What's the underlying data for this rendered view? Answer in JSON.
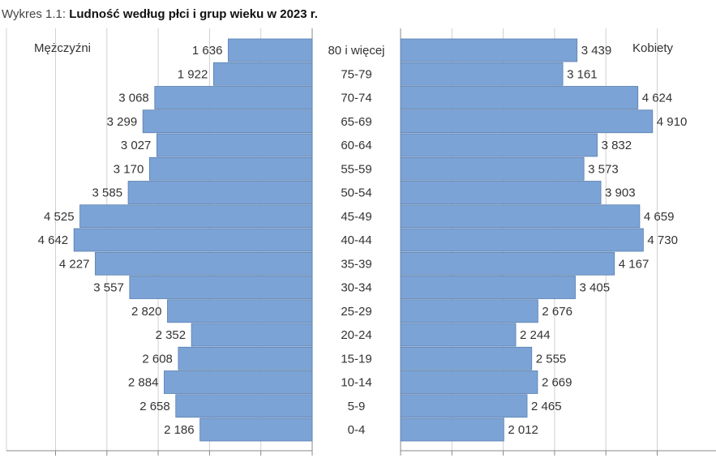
{
  "title": {
    "prefix": "Wykres 1.1:",
    "main": "Ludność według płci i grup wieku w 2023 r."
  },
  "chart_data": {
    "type": "bar",
    "orientation": "horizontal-population-pyramid",
    "categories": [
      "80 i więcej",
      "75-79",
      "70-74",
      "65-69",
      "60-64",
      "55-59",
      "50-54",
      "45-49",
      "40-44",
      "35-39",
      "30-34",
      "25-29",
      "20-24",
      "15-19",
      "10-14",
      "5-9",
      "0-4"
    ],
    "series": [
      {
        "name": "Mężczyźni",
        "values": [
          1636,
          1922,
          3068,
          3299,
          3027,
          3170,
          3585,
          4525,
          4642,
          4227,
          3557,
          2820,
          2352,
          2608,
          2884,
          2658,
          2186
        ],
        "labels": [
          "1 636",
          "1 922",
          "3 068",
          "3 299",
          "3 027",
          "3 170",
          "3 585",
          "4 525",
          "4 642",
          "4 227",
          "3 557",
          "2 820",
          "2 352",
          "2 608",
          "2 884",
          "2 658",
          "2 186"
        ]
      },
      {
        "name": "Kobiety",
        "values": [
          3439,
          3161,
          4624,
          4910,
          3832,
          3573,
          3903,
          4659,
          4730,
          4167,
          3405,
          2676,
          2244,
          2555,
          2669,
          2465,
          2012
        ],
        "labels": [
          "3 439",
          "3 161",
          "4 624",
          "4 910",
          "3 832",
          "3 573",
          "3 903",
          "4 659",
          "4 730",
          "4 167",
          "3 405",
          "2 676",
          "2 244",
          "2 555",
          "2 669",
          "2 465",
          "2 012"
        ]
      }
    ],
    "xlim": [
      0,
      5000
    ],
    "grid": true,
    "colors": {
      "bar_fill": "#7ba3d6",
      "bar_stroke": "#5a7fb0",
      "grid": "#d0d0d0",
      "axis": "#888888",
      "text": "#333333"
    }
  }
}
